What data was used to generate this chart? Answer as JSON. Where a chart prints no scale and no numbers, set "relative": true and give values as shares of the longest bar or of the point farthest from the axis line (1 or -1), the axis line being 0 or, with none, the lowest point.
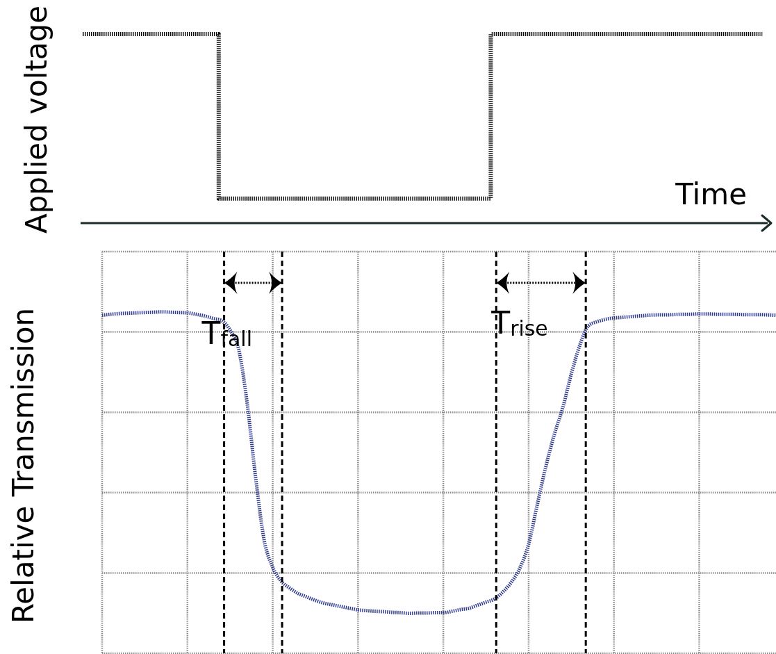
{
  "chart_data": [
    {
      "type": "step",
      "xlabel": "Time",
      "ylabel": "Applied voltage",
      "relative": true,
      "categories": [
        null,
        null,
        null,
        null,
        null,
        null,
        null,
        null,
        null,
        null,
        null,
        null,
        null,
        null,
        null,
        null,
        null,
        null,
        null,
        null,
        null,
        null,
        null,
        null,
        null,
        null
      ],
      "values": [
        1,
        1,
        1,
        1,
        1,
        0.13,
        0.13,
        0.13,
        0.13,
        0.13,
        0.13,
        0.13,
        0.13,
        0.13,
        0.13,
        1,
        1,
        1,
        1,
        1,
        1,
        1,
        1,
        1,
        1,
        1
      ],
      "color": "#111111",
      "line_style": "dotted"
    },
    {
      "type": "line",
      "ylabel": "Relative Transmission",
      "relative": true,
      "categories": [
        null,
        null,
        null,
        null,
        null,
        null,
        null,
        null,
        null,
        null,
        null,
        null,
        null,
        null,
        null,
        null,
        null,
        null,
        null,
        null,
        null,
        null,
        null,
        null,
        null,
        null,
        null,
        null,
        null,
        null,
        null,
        null,
        null,
        null,
        null,
        null,
        null,
        null,
        null,
        null,
        null,
        null,
        null,
        null,
        null,
        null,
        null,
        null,
        null,
        null,
        null,
        null,
        null,
        null,
        null,
        null,
        null,
        null,
        null,
        null,
        null,
        null,
        null,
        null,
        null,
        null,
        null,
        null,
        null,
        null,
        null,
        null,
        null,
        null,
        null,
        null,
        null,
        null,
        null,
        null
      ],
      "values": [
        0.99,
        0.993,
        0.995,
        0.996,
        0.997,
        0.998,
        0.999,
        1,
        0.999,
        0.998,
        0.997,
        0.993,
        0.988,
        0.981,
        0.974,
        0.947,
        0.891,
        0.733,
        0.514,
        0.331,
        0.252,
        0.211,
        0.191,
        0.175,
        0.165,
        0.155,
        0.147,
        0.142,
        0.137,
        0.132,
        0.127,
        0.125,
        0.123,
        0.122,
        0.12,
        0.119,
        0.117,
        0.118,
        0.118,
        0.119,
        0.119,
        0.123,
        0.128,
        0.132,
        0.141,
        0.15,
        0.159,
        0.18,
        0.209,
        0.251,
        0.32,
        0.434,
        0.545,
        0.64,
        0.719,
        0.818,
        0.902,
        0.959,
        0.971,
        0.978,
        0.982,
        0.984,
        0.986,
        0.988,
        0.99,
        0.991,
        0.991,
        0.992,
        0.993,
        0.993,
        0.994,
        0.994,
        0.993,
        0.993,
        0.993,
        0.992,
        0.992,
        0.992,
        0.991,
        0.99
      ],
      "color": "#2e3a8e",
      "line_style": "dotted",
      "grid": true,
      "annotations": [
        "T$_{fall}$",
        "T$_{rise}$"
      ]
    }
  ]
}
